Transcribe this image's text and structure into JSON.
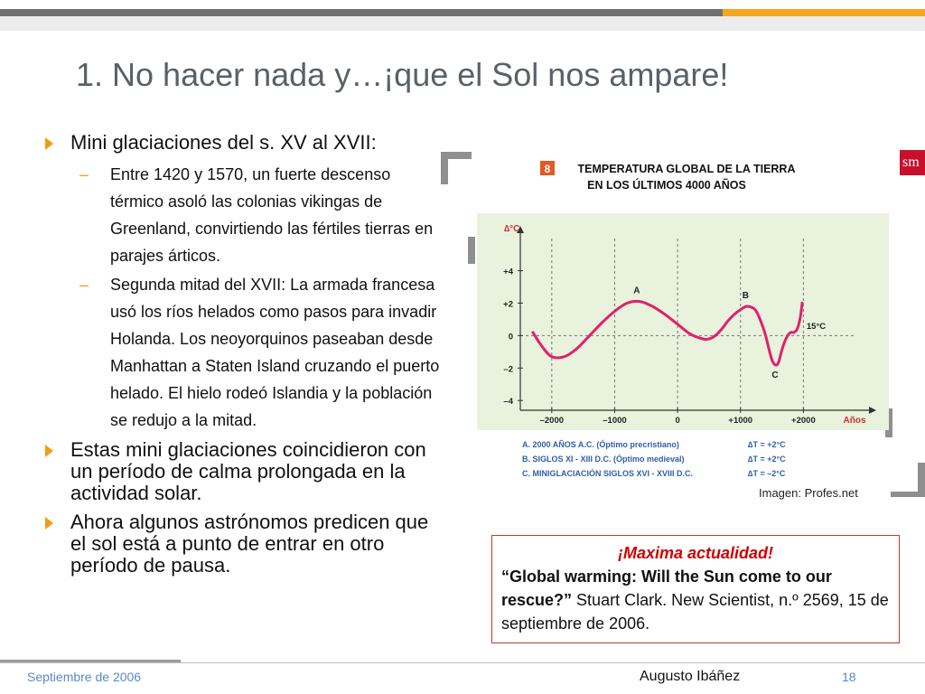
{
  "slide": {
    "title": "1. No hacer nada y…¡que el Sol nos ampare!",
    "bullets": [
      {
        "text": "Mini glaciaciones del s. XV al XVII:",
        "subitems": [
          "Entre 1420 y 1570, un fuerte descenso térmico asoló las colonias vikingas de Greenland, convirtiendo las fértiles tierras en parajes árticos.",
          "Segunda mitad del XVII: La armada francesa usó los ríos helados como pasos para invadir Holanda. Los neoyorquinos paseaban desde Manhattan a Staten Island cruzando el puerto helado. El hielo rodeó Islandia y la población se redujo a la mitad."
        ]
      },
      {
        "text": "Estas mini glaciaciones coincidieron con un período de calma prolongada en la actividad solar."
      },
      {
        "text": "Ahora algunos astrónomos predicen que el sol está a punto de entrar en otro período de pausa."
      }
    ],
    "image_credit": "Imagen: Profes.net",
    "logo_text": "sm",
    "callout": {
      "headline": "¡Maxima actualidad!",
      "quote_title": "“Global warming: Will the Sun come to our rescue?”",
      "source": " Stuart Clark. New Scientist, n.º 2569, 15 de septiembre de 2006."
    },
    "footer": {
      "date": "Septiembre de 2006",
      "author": "Augusto Ibáñez",
      "page": "18"
    },
    "colors": {
      "accent": "#f39c12",
      "chart_bg": "#e8f2dc",
      "curve": "#e0206e",
      "legend_blue": "#2f5fa8"
    }
  },
  "chart_data": {
    "type": "line",
    "badge": "8",
    "title_line1": "TEMPERATURA GLOBAL DE LA TIERRA",
    "title_line2": "EN LOS ÚLTIMOS 4000 AÑOS",
    "ylabel": "∆°C",
    "xlabel": "Años",
    "xlim": [
      -2500,
      3100
    ],
    "ylim": [
      -4.6,
      6.2
    ],
    "x_ticks": [
      -2000,
      -1000,
      0,
      1000,
      2000
    ],
    "x_tick_labels": [
      "–2000",
      "–1000",
      "0",
      "+1000",
      "+2000"
    ],
    "y_ticks": [
      -4,
      -2,
      0,
      2,
      4
    ],
    "y_tick_labels": [
      "–4",
      "–2",
      "0",
      "+2",
      "+4"
    ],
    "reference_label": "15°C",
    "series": [
      {
        "x": [
          -2300,
          -2150,
          -2000,
          -1800,
          -1600,
          -1400,
          -1200,
          -1000,
          -800,
          -600,
          -400,
          -200,
          0,
          200,
          400,
          500,
          600,
          700,
          800,
          900,
          1000,
          1100,
          1200,
          1250,
          1300,
          1350,
          1400,
          1450,
          1500,
          1550,
          1600,
          1650,
          1700,
          1750,
          1800,
          1850,
          1900,
          1950,
          1980
        ],
        "y": [
          0.2,
          -0.7,
          -1.3,
          -1.3,
          -0.8,
          0.0,
          0.8,
          1.5,
          2.0,
          2.1,
          1.8,
          1.3,
          0.7,
          0.1,
          -0.2,
          -0.2,
          0.0,
          0.4,
          0.9,
          1.3,
          1.6,
          1.8,
          1.7,
          1.5,
          1.1,
          0.6,
          0.0,
          -0.8,
          -1.5,
          -1.8,
          -1.7,
          -1.0,
          -0.4,
          0.0,
          0.2,
          0.2,
          0.4,
          1.1,
          2.0
        ]
      }
    ],
    "annotations": [
      {
        "label": "A",
        "x": -650,
        "y": 2.6
      },
      {
        "label": "B",
        "x": 1080,
        "y": 2.3
      },
      {
        "label": "C",
        "x": 1550,
        "y": -2.6
      }
    ],
    "legend": [
      {
        "label": "A. 2000 AÑOS A.C. (Óptimo precristiano)",
        "value": "∆T = +2°C"
      },
      {
        "label": "B. SIGLOS XI - XIII D.C. (Óptimo medieval)",
        "value": "∆T = +2°C"
      },
      {
        "label": "C. MINIGLACIACIÓN SIGLOS XVI - XVIII D.C.",
        "value": "∆T = –2°C"
      }
    ]
  }
}
